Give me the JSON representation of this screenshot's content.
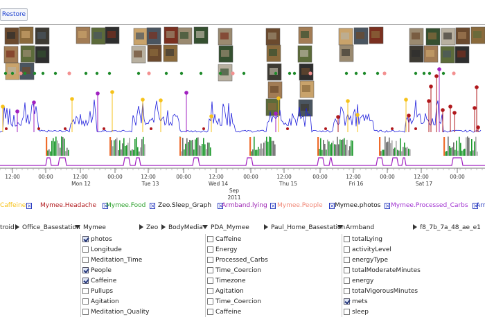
{
  "toolbar": {
    "restore_label": "Restore"
  },
  "timeline": {
    "tick_labels": [
      "12:00",
      "00:00",
      "12:00",
      "00:00",
      "12:00",
      "00:00",
      "12:00",
      "00:00",
      "12:00",
      "00:00",
      "12:00",
      "00:00",
      "12:00",
      "00:00"
    ],
    "day_labels": [
      "Mon 12",
      "Tue 13",
      "Wed 14",
      "Thu 15",
      "Fri 16",
      "Sat 17"
    ],
    "month_label": "Sep",
    "year_label": "2011"
  },
  "photo_groups": [
    {
      "count": 8
    },
    {
      "count": 3
    },
    {
      "count": 8
    },
    {
      "count": 3
    },
    {
      "count": 5
    },
    {
      "count": 5
    },
    {
      "count": 4
    },
    {
      "count": 9
    }
  ],
  "colors": {
    "caffeine": "#f6c21a",
    "headache": "#b0181c",
    "food": "#2aa02a",
    "sleep": "#222222",
    "lying": "#a020c0",
    "people": "#f39090",
    "photos": "#111111",
    "processed_carbs": "#9a2fd0",
    "armband": "#2a3cc0",
    "mets": "#1f1fdc"
  },
  "legend": [
    {
      "label": "Caffeine",
      "color": "#f6c21a"
    },
    {
      "label": "Mymee.Headache",
      "color": "#b0181c"
    },
    {
      "label": "Mymee.Food",
      "color": "#2aa02a"
    },
    {
      "label": "Zeo.Sleep_Graph",
      "color": "#111111"
    },
    {
      "label": "Armband.lying",
      "color": "#9a1fb0"
    },
    {
      "label": "Mymee.People",
      "color": "#f08878"
    },
    {
      "label": "Mymee.photos",
      "color": "#111111"
    },
    {
      "label": "Mymee.Processed_Carbs",
      "color": "#a030d0"
    },
    {
      "label": "Arm",
      "color": "#2a3cc0"
    }
  ],
  "sources": [
    {
      "label": "troid",
      "expanded": false
    },
    {
      "label": "Office_Basestation",
      "expanded": false
    },
    {
      "label": "Mymee",
      "expanded": true
    },
    {
      "label": "Zeo",
      "expanded": false
    },
    {
      "label": "BodyMedia",
      "expanded": false
    },
    {
      "label": "PDA_Mymee",
      "expanded": true
    },
    {
      "label": "Paul_Home_Basestation",
      "expanded": false
    },
    {
      "label": "Armband",
      "expanded": true
    },
    {
      "label": "f8_7b_7a_48_ae_e1",
      "expanded": false
    }
  ],
  "mymee_channels": [
    {
      "label": "photos",
      "checked": true
    },
    {
      "label": "Longitude",
      "checked": false
    },
    {
      "label": "Meditation_Time",
      "checked": false
    },
    {
      "label": "People",
      "checked": true
    },
    {
      "label": "Caffeine",
      "checked": true
    },
    {
      "label": "Pullups",
      "checked": false
    },
    {
      "label": "Agitation",
      "checked": false
    },
    {
      "label": "Meditation_Quality",
      "checked": false
    }
  ],
  "pda_channels": [
    {
      "label": "Caffeine",
      "checked": false
    },
    {
      "label": "Energy",
      "checked": false
    },
    {
      "label": "Processed_Carbs",
      "checked": false
    },
    {
      "label": "Time_Coercion",
      "checked": false
    },
    {
      "label": "Timezone",
      "checked": false
    },
    {
      "label": "Agitation",
      "checked": false
    },
    {
      "label": "Time_Coercion",
      "checked": false
    },
    {
      "label": "Caffeine",
      "checked": false
    }
  ],
  "armband_channels": [
    {
      "label": "totalLying",
      "checked": false
    },
    {
      "label": "activityLevel",
      "checked": false
    },
    {
      "label": "energyType",
      "checked": false
    },
    {
      "label": "totalModerateMinutes",
      "checked": false
    },
    {
      "label": "energy",
      "checked": false
    },
    {
      "label": "totalVigorousMinutes",
      "checked": false
    },
    {
      "label": "mets",
      "checked": true
    },
    {
      "label": "sleep",
      "checked": false
    }
  ]
}
